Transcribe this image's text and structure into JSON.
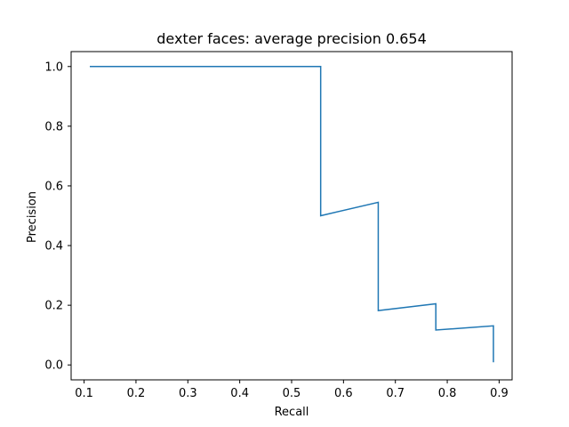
{
  "chart_data": {
    "type": "line",
    "title": "dexter faces: average precision 0.654",
    "xlabel": "Recall",
    "ylabel": "Precision",
    "xlim": [
      0.075,
      0.925
    ],
    "ylim": [
      -0.05,
      1.05
    ],
    "xticks": [
      0.1,
      0.2,
      0.3,
      0.4,
      0.5,
      0.6,
      0.7,
      0.8,
      0.9
    ],
    "xtick_labels": [
      "0.1",
      "0.2",
      "0.3",
      "0.4",
      "0.5",
      "0.6",
      "0.7",
      "0.8",
      "0.9"
    ],
    "yticks": [
      0.0,
      0.2,
      0.4,
      0.6,
      0.8,
      1.0
    ],
    "ytick_labels": [
      "0.0",
      "0.2",
      "0.4",
      "0.6",
      "0.8",
      "1.0"
    ],
    "grid": false,
    "series": [
      {
        "color": "#1f77b4",
        "x": [
          0.111,
          0.556,
          0.556,
          0.667,
          0.667,
          0.778,
          0.778,
          0.889,
          0.889
        ],
        "y": [
          1.0,
          1.0,
          0.5,
          0.545,
          0.182,
          0.205,
          0.117,
          0.131,
          0.009
        ]
      }
    ]
  }
}
